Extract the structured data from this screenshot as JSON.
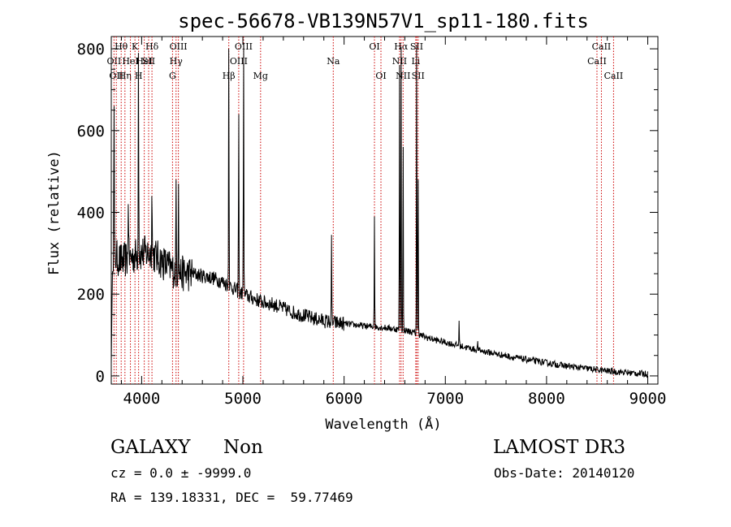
{
  "chart_data": {
    "type": "line",
    "title": "spec-56678-VB139N57V1_sp11-180.fits",
    "xlabel": "Wavelength (Å)",
    "ylabel": "Flux (relative)",
    "xlim": [
      3700,
      9100
    ],
    "ylim": [
      -20,
      830
    ],
    "x_ticks": [
      4000,
      5000,
      6000,
      7000,
      8000,
      9000
    ],
    "y_ticks": [
      0,
      200,
      400,
      600,
      800
    ],
    "grid": false,
    "line_color": "#000000",
    "marker_color": "#cc0000",
    "continuum": {
      "x": [
        3700,
        3800,
        3900,
        4000,
        4100,
        4200,
        4300,
        4400,
        4500,
        4600,
        4700,
        4800,
        4900,
        5000,
        5100,
        5200,
        5300,
        5400,
        5500,
        5600,
        5700,
        5800,
        5900,
        6000,
        6100,
        6200,
        6300,
        6400,
        6500,
        6600,
        6700,
        6800,
        6900,
        7000,
        7100,
        7200,
        7300,
        7400,
        7500,
        7600,
        7700,
        7800,
        7900,
        8000,
        8100,
        8200,
        8300,
        8400,
        8500,
        8600,
        8700,
        8800,
        8900,
        9000
      ],
      "y": [
        300,
        280,
        290,
        300,
        300,
        280,
        260,
        250,
        250,
        245,
        240,
        230,
        215,
        200,
        190,
        180,
        175,
        165,
        155,
        148,
        140,
        135,
        130,
        128,
        125,
        122,
        120,
        118,
        115,
        112,
        105,
        95,
        88,
        82,
        76,
        70,
        64,
        59,
        54,
        49,
        44,
        40,
        36,
        32,
        28,
        24,
        21,
        18,
        15,
        12,
        10,
        8,
        6,
        5
      ]
    },
    "emission_peaks": [
      {
        "x": 3727,
        "y": 660
      },
      {
        "x": 3870,
        "y": 420
      },
      {
        "x": 3969,
        "y": 790
      },
      {
        "x": 4102,
        "y": 440
      },
      {
        "x": 4340,
        "y": 480
      },
      {
        "x": 4363,
        "y": 470
      },
      {
        "x": 4861,
        "y": 800
      },
      {
        "x": 4959,
        "y": 640
      },
      {
        "x": 5007,
        "y": 805
      },
      {
        "x": 5876,
        "y": 345
      },
      {
        "x": 6300,
        "y": 390
      },
      {
        "x": 6548,
        "y": 760
      },
      {
        "x": 6563,
        "y": 805
      },
      {
        "x": 6583,
        "y": 560
      },
      {
        "x": 6717,
        "y": 810
      },
      {
        "x": 6731,
        "y": 480
      },
      {
        "x": 7136,
        "y": 135
      },
      {
        "x": 7320,
        "y": 85
      }
    ],
    "line_markers": [
      {
        "x": 3727,
        "label": "OII",
        "row": 1
      },
      {
        "x": 3750,
        "label": "OII",
        "row": 2
      },
      {
        "x": 3798,
        "label": "Hθ",
        "row": 0
      },
      {
        "x": 3835,
        "label": "Hη",
        "row": 2
      },
      {
        "x": 3889,
        "label": "HeI",
        "row": 1
      },
      {
        "x": 3934,
        "label": "K",
        "row": 0
      },
      {
        "x": 3970,
        "label": "H",
        "row": 2
      },
      {
        "x": 4026,
        "label": "HeI",
        "row": 1
      },
      {
        "x": 4069,
        "label": "SII",
        "row": 1
      },
      {
        "x": 4102,
        "label": "Hδ",
        "row": 0
      },
      {
        "x": 4305,
        "label": "G",
        "row": 2
      },
      {
        "x": 4340,
        "label": "Hγ",
        "row": 1
      },
      {
        "x": 4363,
        "label": "OIII",
        "row": 0
      },
      {
        "x": 4861,
        "label": "Hβ",
        "row": 2
      },
      {
        "x": 4959,
        "label": "OIII",
        "row": 1
      },
      {
        "x": 5007,
        "label": "OIII",
        "row": 0
      },
      {
        "x": 5175,
        "label": "Mg",
        "row": 2
      },
      {
        "x": 5893,
        "label": "Na",
        "row": 1
      },
      {
        "x": 6300,
        "label": "OI",
        "row": 0
      },
      {
        "x": 6364,
        "label": "OI",
        "row": 2
      },
      {
        "x": 6548,
        "label": "NII",
        "row": 1
      },
      {
        "x": 6563,
        "label": "Hα",
        "row": 0
      },
      {
        "x": 6583,
        "label": "NII",
        "row": 2
      },
      {
        "x": 6708,
        "label": "Li",
        "row": 1
      },
      {
        "x": 6717,
        "label": "SII",
        "row": 0
      },
      {
        "x": 6731,
        "label": "SII",
        "row": 2
      },
      {
        "x": 8498,
        "label": "CaII",
        "row": 1
      },
      {
        "x": 8542,
        "label": "CaII",
        "row": 0
      },
      {
        "x": 8662,
        "label": "CaII",
        "row": 2
      }
    ]
  },
  "info": {
    "class": "GALAXY",
    "subclass": "Non",
    "survey": "LAMOST DR3",
    "cz": "cz = 0.0 ± -9999.0",
    "obs_date": "Obs-Date: 20140120",
    "coords": "RA = 139.18331, DEC =  59.77469"
  }
}
